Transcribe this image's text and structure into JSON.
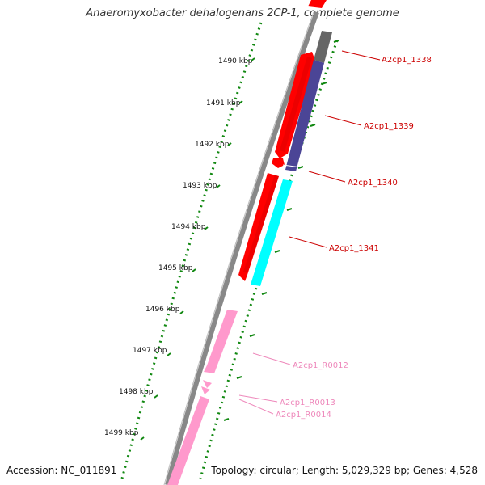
{
  "title": "Anaeromyxobacter dehalogenans 2CP-1, complete genome",
  "footer": {
    "accession": "Accession: NC_011891",
    "summary": "Topology: circular; Length: 5,029,329 bp; Genes: 4,528"
  },
  "scale_labels": [
    "1490 kbp",
    "1491 kbp",
    "1492 kbp",
    "1493 kbp",
    "1494 kbp",
    "1495 kbp",
    "1496 kbp",
    "1497 kbp",
    "1498 kbp",
    "1499 kbp"
  ],
  "colors": {
    "cds_forward": "#ff0000",
    "cds_reverse_gray": "#666666",
    "cds_reverse_purple": "#4b4596",
    "cds_reverse_cyan": "#00ffff",
    "rna": "#ff99cc",
    "backbone": "#888888",
    "ticks": "#118811",
    "label_cds": "#cc0000",
    "label_rna": "#ee88bb"
  },
  "gene_labels": [
    {
      "text": "A2cp1_1338",
      "kind": "cds"
    },
    {
      "text": "A2cp1_1339",
      "kind": "cds"
    },
    {
      "text": "A2cp1_1340",
      "kind": "cds"
    },
    {
      "text": "A2cp1_1341",
      "kind": "cds"
    },
    {
      "text": "A2cp1_R0012",
      "kind": "rna"
    },
    {
      "text": "A2cp1_R0013",
      "kind": "rna"
    },
    {
      "text": "A2cp1_R0014",
      "kind": "rna"
    }
  ]
}
